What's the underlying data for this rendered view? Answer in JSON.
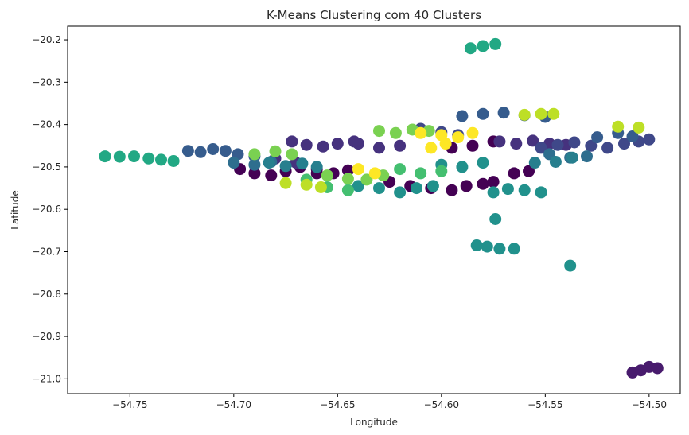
{
  "chart_data": {
    "type": "scatter",
    "title": "K-Means Clustering com 40 Clusters",
    "xlabel": "Longitude",
    "ylabel": "Latitude",
    "xlim": [
      -54.78,
      -54.485
    ],
    "ylim": [
      -21.035,
      -20.168
    ],
    "xticks": [
      -54.75,
      -54.7,
      -54.65,
      -54.6,
      -54.55,
      -54.5
    ],
    "xtick_labels": [
      "−54.75",
      "−54.70",
      "−54.65",
      "−54.60",
      "−54.55",
      "−54.50"
    ],
    "yticks": [
      -20.2,
      -20.3,
      -20.4,
      -20.5,
      -20.6,
      -20.7,
      -20.8,
      -20.9,
      -21.0
    ],
    "ytick_labels": [
      "−20.2",
      "−20.3",
      "−20.4",
      "−20.5",
      "−20.6",
      "−20.7",
      "−20.8",
      "−20.9",
      "−21.0"
    ],
    "grid": false,
    "legend": "none",
    "colormap": "viridis",
    "clusters": [
      {
        "color": "#440154",
        "x": [
          -54.697,
          -54.69,
          -54.682,
          -54.675,
          -54.668,
          -54.66
        ],
        "y": [
          -20.505,
          -20.515,
          -20.52,
          -20.51,
          -20.5,
          -20.515
        ]
      },
      {
        "color": "#440154",
        "x": [
          -54.66,
          -54.652,
          -54.645
        ],
        "y": [
          -20.505,
          -20.515,
          -20.508
        ]
      },
      {
        "color": "#440154",
        "x": [
          -54.625,
          -54.615,
          -54.605,
          -54.595,
          -54.588,
          -54.58,
          -54.575
        ],
        "y": [
          -20.535,
          -20.545,
          -20.55,
          -20.555,
          -20.545,
          -20.54,
          -20.535
        ]
      },
      {
        "color": "#440154",
        "x": [
          -54.595,
          -54.585,
          -54.575
        ],
        "y": [
          -20.455,
          -20.45,
          -20.44
        ]
      },
      {
        "color": "#440154",
        "x": [
          -54.565,
          -54.558
        ],
        "y": [
          -20.515,
          -20.51
        ]
      },
      {
        "color": "#481b6d",
        "x": [
          -54.508,
          -54.504,
          -54.5,
          -54.496
        ],
        "y": [
          -20.985,
          -20.98,
          -20.972,
          -20.975
        ]
      },
      {
        "color": "#46327e",
        "x": [
          -54.672,
          -54.665,
          -54.657,
          -54.65,
          -54.642
        ],
        "y": [
          -20.44,
          -20.448,
          -20.452,
          -20.445,
          -20.44
        ]
      },
      {
        "color": "#46327e",
        "x": [
          -54.64,
          -54.63,
          -54.62
        ],
        "y": [
          -20.445,
          -20.455,
          -20.45
        ]
      },
      {
        "color": "#46327e",
        "x": [
          -54.572,
          -54.564,
          -54.556,
          -54.548,
          -54.54
        ],
        "y": [
          -20.44,
          -20.445,
          -20.438,
          -20.445,
          -20.448
        ]
      },
      {
        "color": "#46327e",
        "x": [
          -54.68,
          -54.67
        ],
        "y": [
          -20.48,
          -20.49
        ]
      },
      {
        "color": "#3f4889",
        "x": [
          -54.552,
          -54.544,
          -54.536,
          -54.528,
          -54.52,
          -54.512,
          -54.505,
          -54.5
        ],
        "y": [
          -20.455,
          -20.448,
          -20.442,
          -20.45,
          -20.455,
          -20.445,
          -20.44,
          -20.435
        ]
      },
      {
        "color": "#3f4889",
        "x": [
          -54.61,
          -54.6,
          -54.592
        ],
        "y": [
          -20.41,
          -20.418,
          -20.425
        ]
      },
      {
        "color": "#365c8d",
        "x": [
          -54.722,
          -54.716,
          -54.71,
          -54.704,
          -54.698,
          -54.69
        ],
        "y": [
          -20.462,
          -20.465,
          -20.458,
          -20.462,
          -20.47,
          -20.475
        ]
      },
      {
        "color": "#365c8d",
        "x": [
          -54.59,
          -54.58,
          -54.57,
          -54.56,
          -54.55
        ],
        "y": [
          -20.38,
          -20.375,
          -20.372,
          -20.378,
          -20.382
        ]
      },
      {
        "color": "#365c8d",
        "x": [
          -54.525,
          -54.515,
          -54.508
        ],
        "y": [
          -20.43,
          -20.42,
          -20.428
        ]
      },
      {
        "color": "#2e6e8e",
        "x": [
          -54.7,
          -54.69,
          -54.682
        ],
        "y": [
          -20.49,
          -20.495,
          -20.488
        ]
      },
      {
        "color": "#2e6e8e",
        "x": [
          -54.548,
          -54.538,
          -54.53
        ],
        "y": [
          -20.47,
          -20.478,
          -20.475
        ]
      },
      {
        "color": "#277f8e",
        "x": [
          -54.683,
          -54.675,
          -54.667,
          -54.66
        ],
        "y": [
          -20.49,
          -20.498,
          -20.492,
          -20.5
        ]
      },
      {
        "color": "#277f8e",
        "x": [
          -54.555,
          -54.545,
          -54.537
        ],
        "y": [
          -20.49,
          -20.488,
          -20.478
        ]
      },
      {
        "color": "#21918c",
        "x": [
          -54.64,
          -54.63,
          -54.62,
          -54.612,
          -54.604
        ],
        "y": [
          -20.545,
          -20.55,
          -20.56,
          -20.55,
          -20.545
        ]
      },
      {
        "color": "#21918c",
        "x": [
          -54.575,
          -54.568,
          -54.56,
          -54.552
        ],
        "y": [
          -20.56,
          -20.552,
          -20.555,
          -20.56
        ]
      },
      {
        "color": "#21918c",
        "x": [
          -54.583,
          -54.578
        ],
        "y": [
          -20.685,
          -20.688
        ]
      },
      {
        "color": "#21918c",
        "x": [
          -54.574
        ],
        "y": [
          -20.623
        ]
      },
      {
        "color": "#21918c",
        "x": [
          -54.572,
          -54.565
        ],
        "y": [
          -20.693,
          -20.693
        ]
      },
      {
        "color": "#21918c",
        "x": [
          -54.538
        ],
        "y": [
          -20.733
        ]
      },
      {
        "color": "#21918c",
        "x": [
          -54.6,
          -54.59,
          -54.58
        ],
        "y": [
          -20.495,
          -20.5,
          -20.49
        ]
      },
      {
        "color": "#22a884",
        "x": [
          -54.762,
          -54.755,
          -54.748,
          -54.741,
          -54.735,
          -54.729
        ],
        "y": [
          -20.475,
          -20.476,
          -20.475,
          -20.48,
          -20.483,
          -20.486
        ]
      },
      {
        "color": "#22a884",
        "x": [
          -54.586,
          -54.58,
          -54.574
        ],
        "y": [
          -20.22,
          -20.215,
          -20.21
        ]
      },
      {
        "color": "#44bf70",
        "x": [
          -54.62,
          -54.61,
          -54.6
        ],
        "y": [
          -20.505,
          -20.515,
          -20.51
        ]
      },
      {
        "color": "#44bf70",
        "x": [
          -54.665,
          -54.655,
          -54.645
        ],
        "y": [
          -20.53,
          -20.548,
          -20.555
        ]
      },
      {
        "color": "#7ad151",
        "x": [
          -54.69,
          -54.68,
          -54.672
        ],
        "y": [
          -20.47,
          -20.463,
          -20.47
        ]
      },
      {
        "color": "#7ad151",
        "x": [
          -54.63,
          -54.622,
          -54.614,
          -54.606
        ],
        "y": [
          -20.415,
          -20.42,
          -20.412,
          -20.415
        ]
      },
      {
        "color": "#7ad151",
        "x": [
          -54.655,
          -54.645,
          -54.636,
          -54.628
        ],
        "y": [
          -20.52,
          -20.528,
          -20.53,
          -20.52
        ]
      },
      {
        "color": "#bddf26",
        "x": [
          -54.56,
          -54.552,
          -54.546
        ],
        "y": [
          -20.377,
          -20.375,
          -20.375
        ]
      },
      {
        "color": "#bddf26",
        "x": [
          -54.515,
          -54.505
        ],
        "y": [
          -20.405,
          -20.407
        ]
      },
      {
        "color": "#bddf26",
        "x": [
          -54.675,
          -54.665,
          -54.658
        ],
        "y": [
          -20.538,
          -20.542,
          -20.548
        ]
      },
      {
        "color": "#fde725",
        "x": [
          -54.61,
          -54.6,
          -54.592,
          -54.585,
          -54.598,
          -54.605
        ],
        "y": [
          -20.42,
          -20.425,
          -20.43,
          -20.42,
          -20.445,
          -20.455
        ]
      },
      {
        "color": "#fde725",
        "x": [
          -54.64,
          -54.632
        ],
        "y": [
          -20.505,
          -20.515
        ]
      }
    ]
  }
}
